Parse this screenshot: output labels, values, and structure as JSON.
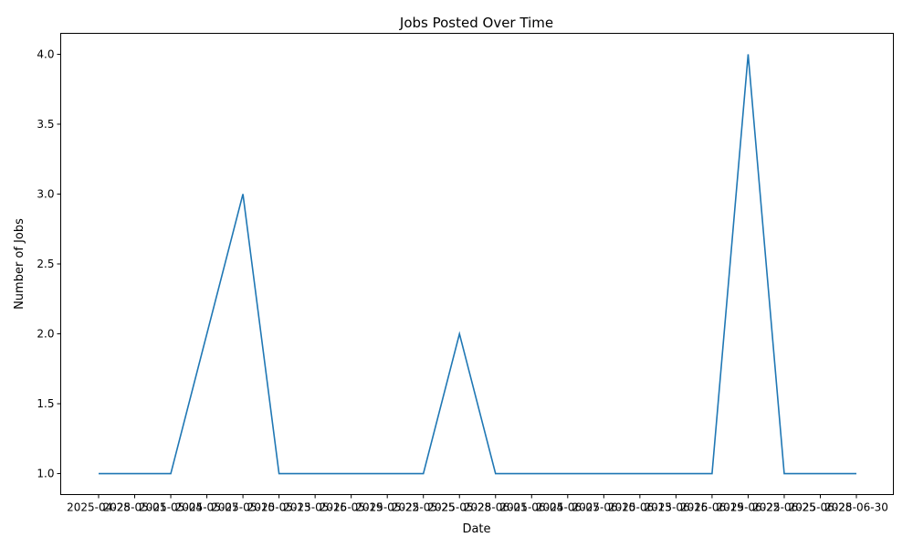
{
  "chart_data": {
    "type": "line",
    "title": "Jobs Posted Over Time",
    "xlabel": "Date",
    "ylabel": "Number of Jobs",
    "x": [
      "2025-04-28",
      "2025-05-01",
      "2025-05-04",
      "2025-05-07",
      "2025-05-10",
      "2025-05-13",
      "2025-05-16",
      "2025-05-19",
      "2025-05-22",
      "2025-05-25",
      "2025-05-28",
      "2025-06-01",
      "2025-06-04",
      "2025-06-07",
      "2025-06-10",
      "2025-06-13",
      "2025-06-16",
      "2025-06-19",
      "2025-06-22",
      "2025-06-25",
      "2025-06-28",
      "2025-06-30"
    ],
    "x_tick_labels": [
      "2025-04-28",
      "2025-05-01",
      "2025-05-04",
      "2025-05-07",
      "2025-05-10",
      "2025-05-13",
      "2025-05-16",
      "2025-05-19",
      "2025-05-22",
      "2025-05-25",
      "2025-05-28",
      "2025-06-01",
      "2025-06-04",
      "2025-06-07",
      "2025-06-10",
      "2025-06-13",
      "2025-06-16",
      "2025-06-19",
      "2025-06-22",
      "2025-06-25",
      "2025-06-28",
      "2025-06-30"
    ],
    "series": [
      {
        "values": [
          1,
          1,
          1,
          2,
          3,
          1,
          1,
          1,
          1,
          1,
          2,
          1,
          1,
          1,
          1,
          1,
          1,
          1,
          4,
          1,
          1,
          1
        ],
        "color": "#1f77b4"
      }
    ],
    "yticks": [
      "1.0",
      "1.5",
      "2.0",
      "2.5",
      "3.0",
      "3.5",
      "4.0"
    ],
    "ylim": [
      0.85,
      4.15
    ],
    "grid": false,
    "legend": "none"
  }
}
